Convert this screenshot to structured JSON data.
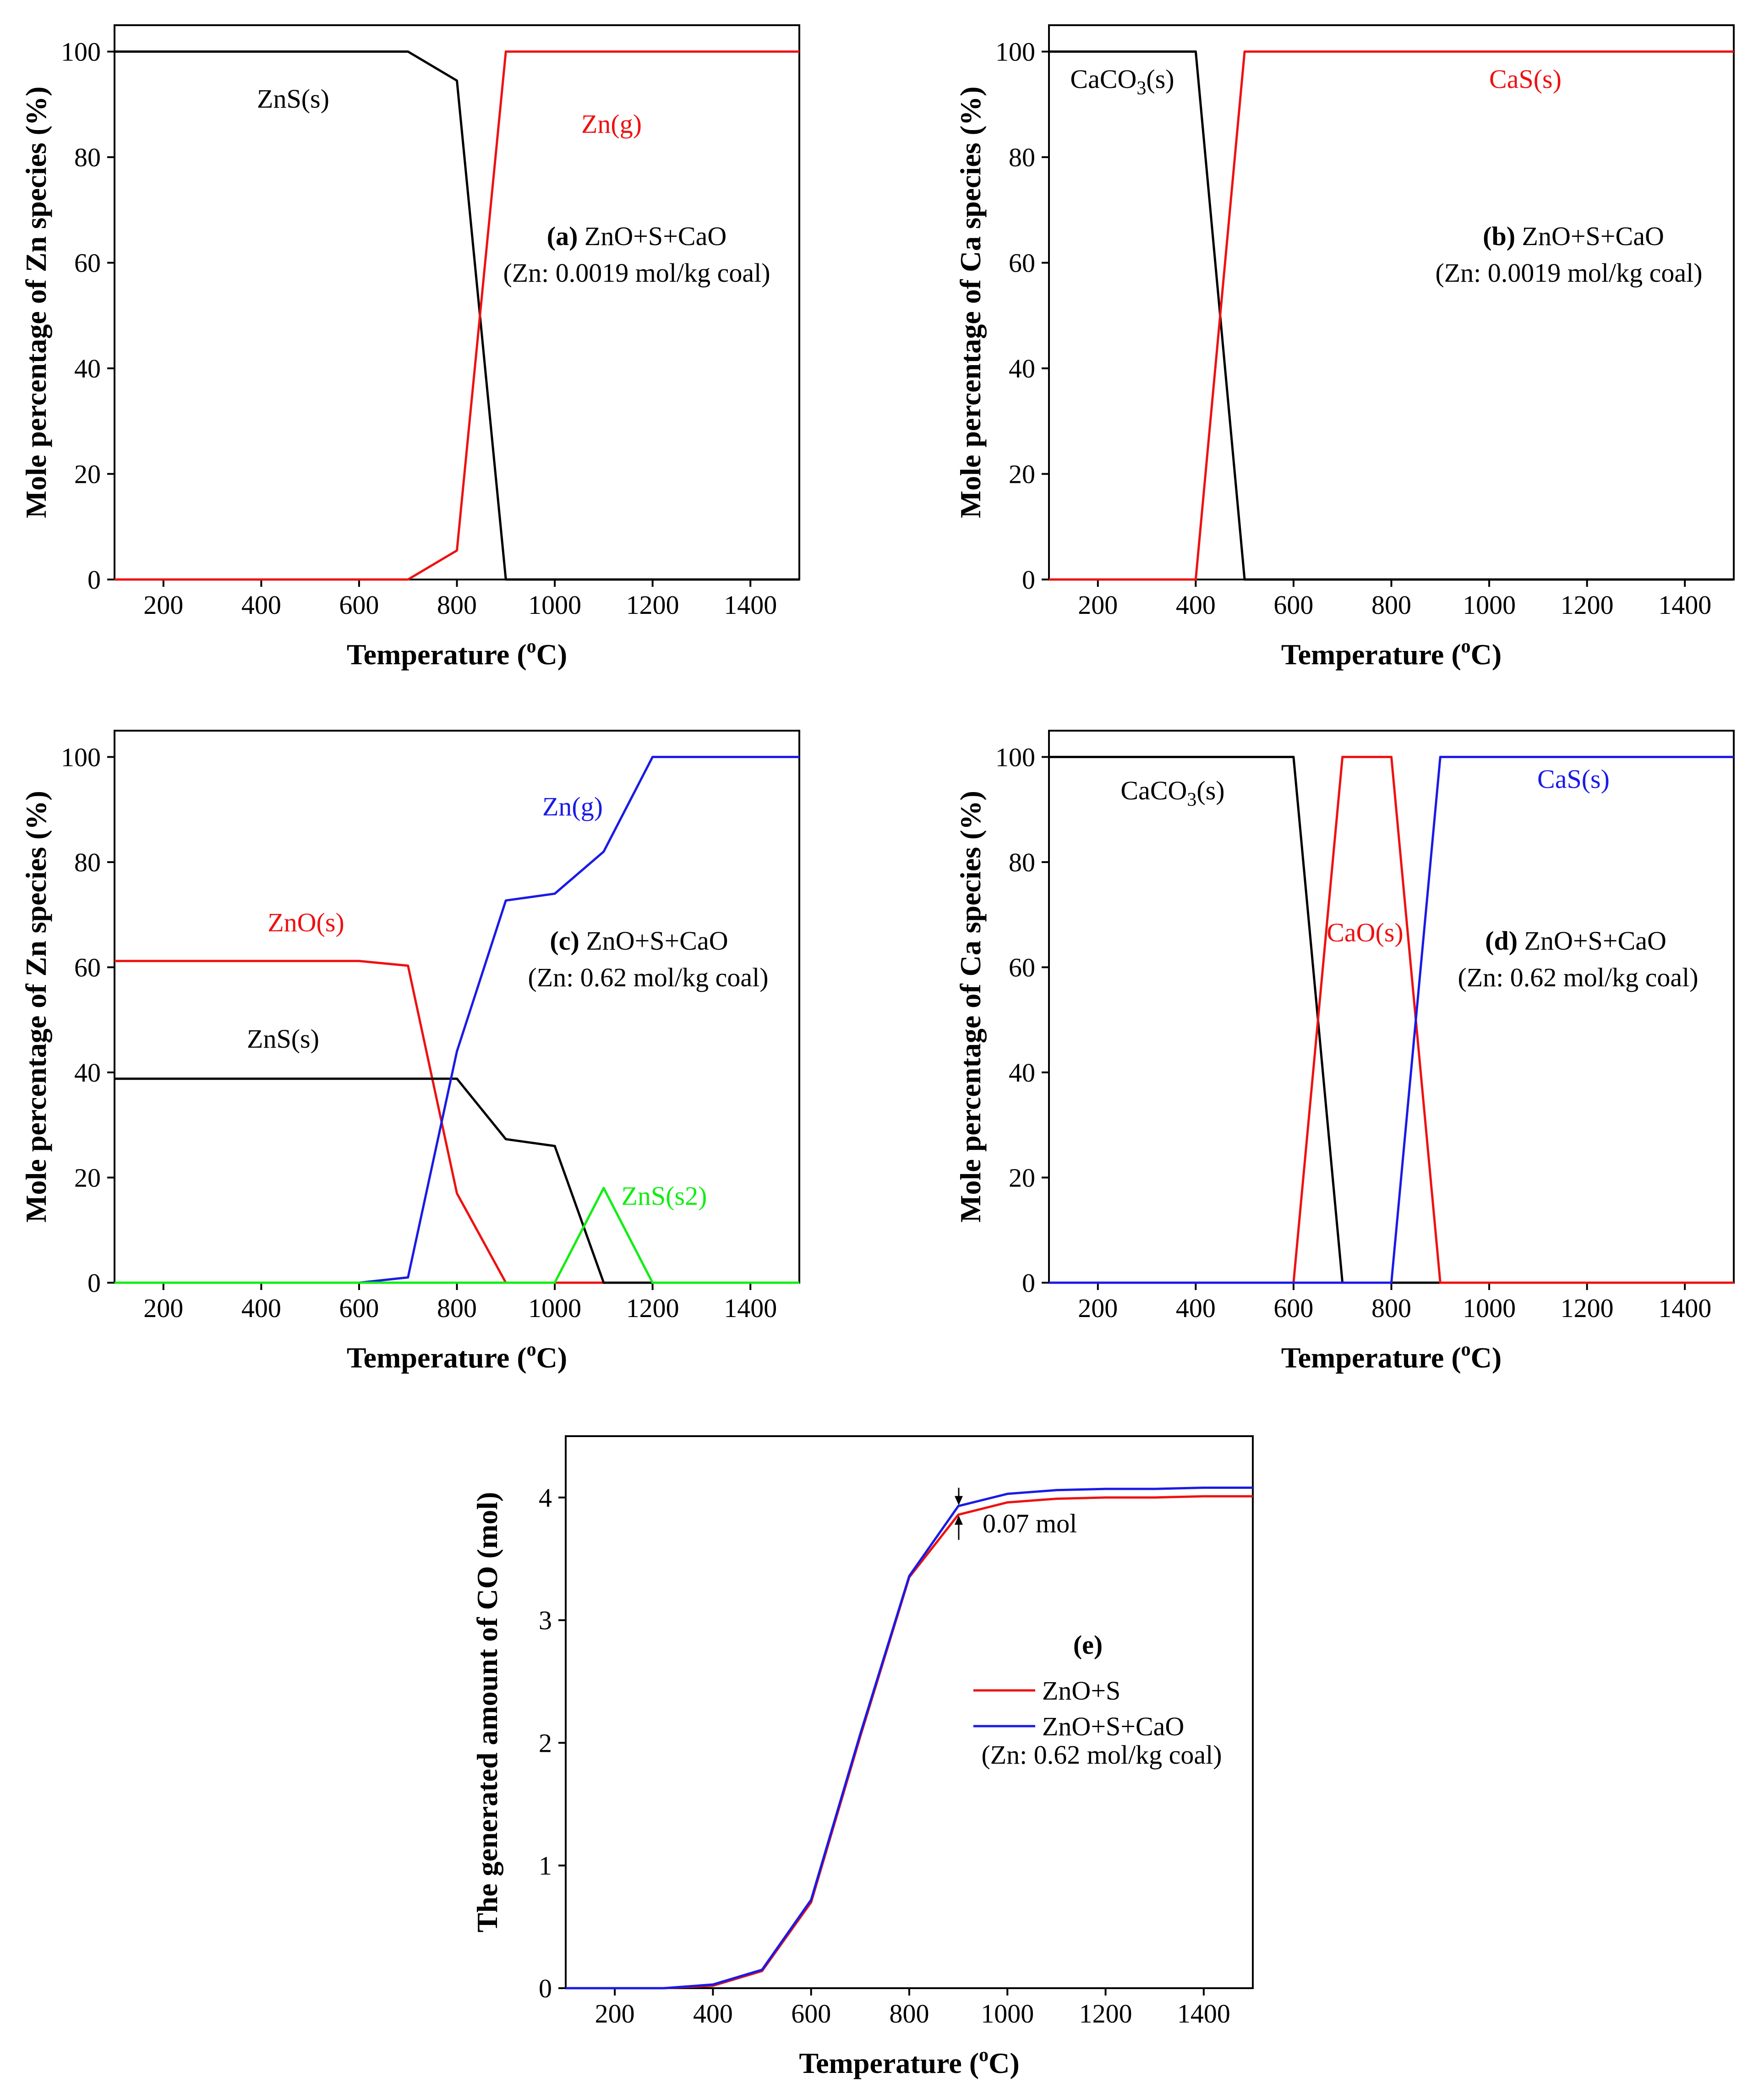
{
  "colors": {
    "black": "#000000",
    "red": "#ee1111",
    "blue": "#1a1ae6",
    "green": "#11ee11"
  },
  "chart_data": [
    {
      "id": "a",
      "type": "line",
      "panel_label": "(a)",
      "subtitle": "ZnO+S+CaO",
      "condition": "(Zn: 0.0019 mol/kg coal)",
      "xlabel": "Temperature (",
      "xlabel_sup": "o",
      "xlabel_tail": "C)",
      "ylabel": "Mole percentage of Zn species (%)",
      "xlim": [
        100,
        1500
      ],
      "ylim": [
        0,
        105
      ],
      "xticks": [
        "200",
        "400",
        "600",
        "800",
        "1000",
        "1200",
        "1400"
      ],
      "yticks": [
        "0",
        "20",
        "40",
        "60",
        "80",
        "100"
      ],
      "series": [
        {
          "name": "ZnS(s)",
          "label_text": "ZnS(s)",
          "color": "#000000",
          "x": [
            100,
            600,
            700,
            800,
            900,
            1000,
            1500
          ],
          "y": [
            100,
            100,
            100,
            94.5,
            0,
            0,
            0
          ]
        },
        {
          "name": "Zn(g)",
          "label_text": "Zn(g)",
          "color": "#ee1111",
          "x": [
            100,
            600,
            700,
            800,
            900,
            1000,
            1500
          ],
          "y": [
            0,
            0,
            0,
            5.5,
            100,
            100,
            100
          ]
        }
      ]
    },
    {
      "id": "b",
      "type": "line",
      "panel_label": "(b)",
      "subtitle": "ZnO+S+CaO",
      "condition": "(Zn: 0.0019 mol/kg coal)",
      "xlabel": "Temperature (",
      "xlabel_sup": "o",
      "xlabel_tail": "C)",
      "ylabel": "Mole percentage of Ca species (%)",
      "xlim": [
        100,
        1500
      ],
      "ylim": [
        0,
        105
      ],
      "xticks": [
        "200",
        "400",
        "600",
        "800",
        "1000",
        "1200",
        "1400"
      ],
      "yticks": [
        "0",
        "20",
        "40",
        "60",
        "80",
        "100"
      ],
      "series": [
        {
          "name": "CaCO3(s)",
          "label_text": "CaCO",
          "label_sub": "3",
          "label_tail": "(s)",
          "color": "#000000",
          "x": [
            100,
            400,
            500,
            1500
          ],
          "y": [
            100,
            100,
            0,
            0
          ]
        },
        {
          "name": "CaS(s)",
          "label_text": "CaS(s)",
          "color": "#ee1111",
          "x": [
            100,
            400,
            500,
            1500
          ],
          "y": [
            0,
            0,
            100,
            100
          ]
        }
      ]
    },
    {
      "id": "c",
      "type": "line",
      "panel_label": "(c)",
      "subtitle": "ZnO+S+CaO",
      "condition": "(Zn: 0.62 mol/kg coal)",
      "xlabel": "Temperature (",
      "xlabel_sup": "o",
      "xlabel_tail": "C)",
      "ylabel": "Mole percentage of Zn species (%)",
      "xlim": [
        100,
        1500
      ],
      "ylim": [
        0,
        105
      ],
      "xticks": [
        "200",
        "400",
        "600",
        "800",
        "1000",
        "1200",
        "1400"
      ],
      "yticks": [
        "0",
        "20",
        "40",
        "60",
        "80",
        "100"
      ],
      "series": [
        {
          "name": "ZnO(s)",
          "label_text": "ZnO(s)",
          "color": "#ee1111",
          "x": [
            100,
            600,
            700,
            800,
            900,
            1000,
            1100,
            1200,
            1500
          ],
          "y": [
            61.2,
            61.2,
            60.3,
            17,
            0,
            0,
            0,
            0,
            0
          ]
        },
        {
          "name": "ZnS(s)",
          "label_text": "ZnS(s)",
          "color": "#000000",
          "x": [
            100,
            600,
            700,
            800,
            900,
            1000,
            1100,
            1200,
            1500
          ],
          "y": [
            38.8,
            38.8,
            38.8,
            38.8,
            27.3,
            26,
            0,
            0,
            0
          ]
        },
        {
          "name": "Zn(g)",
          "label_text": "Zn(g)",
          "color": "#1a1ae6",
          "x": [
            100,
            600,
            700,
            800,
            900,
            1000,
            1100,
            1200,
            1500
          ],
          "y": [
            0,
            0,
            1,
            44,
            72.7,
            74,
            82,
            100,
            100
          ]
        },
        {
          "name": "ZnS(s2)",
          "label_text": "ZnS(s2)",
          "color": "#11ee11",
          "x": [
            100,
            1000,
            1100,
            1200,
            1500
          ],
          "y": [
            0,
            0,
            18,
            0,
            0
          ]
        }
      ]
    },
    {
      "id": "d",
      "type": "line",
      "panel_label": "(d)",
      "subtitle": "ZnO+S+CaO",
      "condition": "(Zn: 0.62 mol/kg coal)",
      "xlabel": "Temperature (",
      "xlabel_sup": "o",
      "xlabel_tail": "C)",
      "ylabel": "Mole percentage of Ca species (%)",
      "xlim": [
        100,
        1500
      ],
      "ylim": [
        0,
        105
      ],
      "xticks": [
        "200",
        "400",
        "600",
        "800",
        "1000",
        "1200",
        "1400"
      ],
      "yticks": [
        "0",
        "20",
        "40",
        "60",
        "80",
        "100"
      ],
      "series": [
        {
          "name": "CaCO3(s)",
          "label_text": "CaCO",
          "label_sub": "3",
          "label_tail": "(s)",
          "color": "#000000",
          "x": [
            100,
            600,
            700,
            1500
          ],
          "y": [
            100,
            100,
            0,
            0
          ]
        },
        {
          "name": "CaO(s)",
          "label_text": "CaO(s)",
          "color": "#ee1111",
          "x": [
            100,
            600,
            700,
            800,
            900,
            1500
          ],
          "y": [
            0,
            0,
            100,
            100,
            0,
            0
          ]
        },
        {
          "name": "CaS(s)",
          "label_text": "CaS(s)",
          "color": "#1a1ae6",
          "x": [
            100,
            800,
            900,
            1500
          ],
          "y": [
            0,
            0,
            100,
            100
          ]
        }
      ]
    },
    {
      "id": "e",
      "type": "line",
      "panel_label": "(e)",
      "condition": "(Zn: 0.62 mol/kg coal)",
      "xlabel": "Temperature (",
      "xlabel_sup": "o",
      "xlabel_tail": "C)",
      "ylabel": "The generated amount of CO (mol)",
      "xlim": [
        100,
        1500
      ],
      "ylim": [
        0,
        4.5
      ],
      "xticks": [
        "200",
        "400",
        "600",
        "800",
        "1000",
        "1200",
        "1400"
      ],
      "yticks": [
        "0",
        "1",
        "2",
        "3",
        "4"
      ],
      "annotation": "0.07 mol",
      "series": [
        {
          "name": "ZnO+S",
          "label_text": "ZnO+S",
          "color": "#ee1111",
          "x": [
            100,
            300,
            400,
            500,
            600,
            700,
            800,
            900,
            1000,
            1100,
            1200,
            1300,
            1400,
            1500
          ],
          "y": [
            0,
            0,
            0.02,
            0.14,
            0.7,
            2.05,
            3.35,
            3.86,
            3.96,
            3.99,
            4.0,
            4.0,
            4.01,
            4.01
          ]
        },
        {
          "name": "ZnO+S+CaO",
          "label_text": "ZnO+S+CaO",
          "color": "#1a1ae6",
          "x": [
            100,
            300,
            400,
            500,
            600,
            700,
            800,
            900,
            1000,
            1100,
            1200,
            1300,
            1400,
            1500
          ],
          "y": [
            0,
            0,
            0.03,
            0.15,
            0.72,
            2.07,
            3.36,
            3.93,
            4.03,
            4.06,
            4.07,
            4.07,
            4.08,
            4.08
          ]
        }
      ]
    }
  ]
}
